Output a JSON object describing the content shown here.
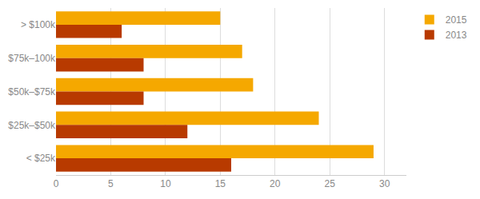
{
  "chart_data": {
    "type": "bar",
    "orientation": "horizontal",
    "categories": [
      "> $100k",
      "$75k–100k",
      "$50k–$75k",
      "$25k–$50k",
      "< $25k"
    ],
    "series": [
      {
        "name": "2015",
        "color": "#F5A800",
        "values": [
          15,
          17,
          18,
          24,
          29
        ]
      },
      {
        "name": "2013",
        "color": "#B83A00",
        "values": [
          6,
          8,
          8,
          12,
          16
        ]
      }
    ],
    "xlim": [
      0,
      32
    ],
    "xticks": [
      0,
      5,
      10,
      15,
      20,
      25,
      30
    ],
    "grid": true,
    "legend": "upper right"
  }
}
